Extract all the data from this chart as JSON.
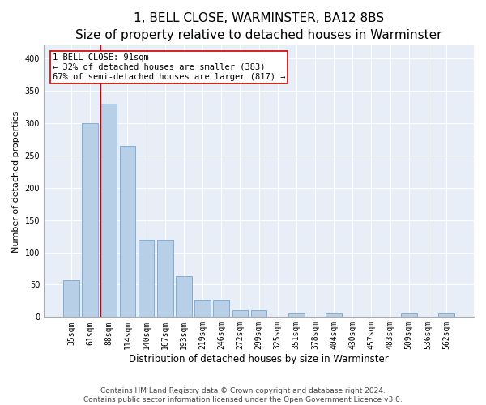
{
  "title": "1, BELL CLOSE, WARMINSTER, BA12 8BS",
  "subtitle": "Size of property relative to detached houses in Warminster",
  "xlabel": "Distribution of detached houses by size in Warminster",
  "ylabel": "Number of detached properties",
  "footer_line1": "Contains HM Land Registry data © Crown copyright and database right 2024.",
  "footer_line2": "Contains public sector information licensed under the Open Government Licence v3.0.",
  "bar_labels": [
    "35sqm",
    "61sqm",
    "88sqm",
    "114sqm",
    "140sqm",
    "167sqm",
    "193sqm",
    "219sqm",
    "246sqm",
    "272sqm",
    "299sqm",
    "325sqm",
    "351sqm",
    "378sqm",
    "404sqm",
    "430sqm",
    "457sqm",
    "483sqm",
    "509sqm",
    "536sqm",
    "562sqm"
  ],
  "bar_values": [
    57,
    300,
    330,
    265,
    120,
    120,
    63,
    27,
    27,
    10,
    10,
    0,
    5,
    0,
    5,
    0,
    0,
    0,
    5,
    0,
    5
  ],
  "bar_color": "#b8cfe8",
  "bar_edgecolor": "#6699cc",
  "annotation_box_text": "1 BELL CLOSE: 91sqm\n← 32% of detached houses are smaller (383)\n67% of semi-detached houses are larger (817) →",
  "ylim": [
    0,
    420
  ],
  "yticks": [
    0,
    50,
    100,
    150,
    200,
    250,
    300,
    350,
    400
  ],
  "bg_color": "#e8eef7",
  "ref_line_color": "#cc0000",
  "box_edgecolor": "#cc0000",
  "title_fontsize": 11,
  "subtitle_fontsize": 9,
  "xlabel_fontsize": 8.5,
  "ylabel_fontsize": 8,
  "tick_fontsize": 7,
  "annotation_fontsize": 7.5,
  "footer_fontsize": 6.5
}
